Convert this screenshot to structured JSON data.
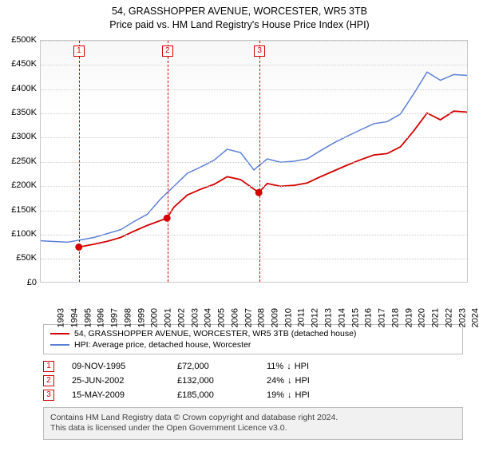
{
  "title": {
    "line1": "54, GRASSHOPPER AVENUE, WORCESTER, WR5 3TB",
    "line2": "Price paid vs. HM Land Registry's House Price Index (HPI)",
    "fontsize": 12.5,
    "color": "#000000"
  },
  "chart": {
    "type": "line",
    "background_color": "#ffffff",
    "grid_color": "#d0d0d0",
    "border_color": "#c8c8c8",
    "ylim": [
      0,
      500000
    ],
    "ytick_step": 50000,
    "ytick_labels": [
      "£0",
      "£50K",
      "£100K",
      "£150K",
      "£200K",
      "£250K",
      "£300K",
      "£350K",
      "£400K",
      "£450K",
      "£500K"
    ],
    "xlim": [
      1993,
      2025
    ],
    "xtick_step": 1,
    "xtick_labels": [
      "1993",
      "1994",
      "1995",
      "1996",
      "1997",
      "1998",
      "1999",
      "2000",
      "2001",
      "2002",
      "2003",
      "2004",
      "2005",
      "2006",
      "2007",
      "2008",
      "2009",
      "2010",
      "2011",
      "2012",
      "2013",
      "2014",
      "2015",
      "2016",
      "2017",
      "2018",
      "2019",
      "2020",
      "2021",
      "2022",
      "2023",
      "2024",
      "2025"
    ],
    "axis_font_size": 11,
    "series": [
      {
        "id": "hpi",
        "label": "HPI: Average price, detached house, Worcester",
        "color": "#5a7fd6",
        "line_width": 1.5,
        "data": [
          [
            1993,
            85000
          ],
          [
            1995,
            82000
          ],
          [
            1997,
            92000
          ],
          [
            1999,
            108000
          ],
          [
            2000,
            125000
          ],
          [
            2001,
            140000
          ],
          [
            2002,
            172000
          ],
          [
            2003,
            198000
          ],
          [
            2004,
            225000
          ],
          [
            2005,
            238000
          ],
          [
            2006,
            252000
          ],
          [
            2007,
            275000
          ],
          [
            2008,
            268000
          ],
          [
            2009,
            232000
          ],
          [
            2010,
            255000
          ],
          [
            2011,
            248000
          ],
          [
            2012,
            250000
          ],
          [
            2013,
            255000
          ],
          [
            2014,
            272000
          ],
          [
            2015,
            288000
          ],
          [
            2016,
            302000
          ],
          [
            2017,
            315000
          ],
          [
            2018,
            328000
          ],
          [
            2019,
            332000
          ],
          [
            2020,
            348000
          ],
          [
            2021,
            390000
          ],
          [
            2022,
            435000
          ],
          [
            2023,
            418000
          ],
          [
            2024,
            430000
          ],
          [
            2025,
            428000
          ]
        ]
      },
      {
        "id": "price_paid",
        "label": "54, GRASSHOPPER AVENUE, WORCESTER, WR5 3TB (detached house)",
        "color": "#d40000",
        "line_width": 1.8,
        "data": [
          [
            1995.86,
            72000
          ],
          [
            1997,
            78000
          ],
          [
            1998,
            84000
          ],
          [
            1999,
            92000
          ],
          [
            2000,
            105000
          ],
          [
            2001,
            117000
          ],
          [
            2002.48,
            132000
          ],
          [
            2003,
            155000
          ],
          [
            2004,
            180000
          ],
          [
            2005,
            192000
          ],
          [
            2006,
            202000
          ],
          [
            2007,
            218000
          ],
          [
            2008,
            212000
          ],
          [
            2009.37,
            185000
          ],
          [
            2010,
            204000
          ],
          [
            2011,
            198000
          ],
          [
            2012,
            200000
          ],
          [
            2013,
            205000
          ],
          [
            2014,
            218000
          ],
          [
            2015,
            230000
          ],
          [
            2016,
            242000
          ],
          [
            2017,
            253000
          ],
          [
            2018,
            263000
          ],
          [
            2019,
            266000
          ],
          [
            2020,
            280000
          ],
          [
            2021,
            313000
          ],
          [
            2022,
            350000
          ],
          [
            2023,
            336000
          ],
          [
            2024,
            354000
          ],
          [
            2025,
            352000
          ]
        ]
      }
    ],
    "sale_markers": [
      {
        "n": "1",
        "year": 1995.86,
        "value": 72000
      },
      {
        "n": "2",
        "year": 2002.48,
        "value": 132000
      },
      {
        "n": "3",
        "year": 2009.37,
        "value": 185000
      }
    ],
    "marker_color": "#d40000",
    "marker_radius": 4.5
  },
  "legend": {
    "border_color": "#bcbcbc",
    "items": [
      {
        "color": "#d40000",
        "label": "54, GRASSHOPPER AVENUE, WORCESTER, WR5 3TB (detached house)"
      },
      {
        "color": "#5a7fd6",
        "label": "HPI: Average price, detached house, Worcester"
      }
    ]
  },
  "sales": [
    {
      "n": "1",
      "date": "09-NOV-1995",
      "price": "£72,000",
      "diff": "11%",
      "arrow": "↓",
      "vs": "HPI"
    },
    {
      "n": "2",
      "date": "25-JUN-2002",
      "price": "£132,000",
      "diff": "24%",
      "arrow": "↓",
      "vs": "HPI"
    },
    {
      "n": "3",
      "date": "15-MAY-2009",
      "price": "£185,000",
      "diff": "19%",
      "arrow": "↓",
      "vs": "HPI"
    }
  ],
  "footer": {
    "line1": "Contains HM Land Registry data © Crown copyright and database right 2024.",
    "line2": "This data is licensed under the Open Government Licence v3.0.",
    "bg": "#f1f1f1"
  }
}
